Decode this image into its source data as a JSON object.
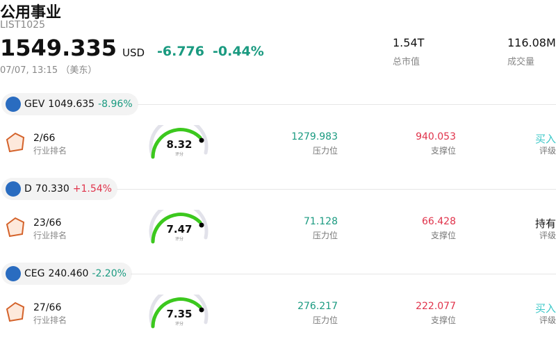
{
  "header": {
    "title": "公用事业",
    "code": "LIST1025",
    "price": "1549.335",
    "currency": "USD",
    "change": "-6.776",
    "change_pct": "-0.44%",
    "time": "07/07, 13:15 （美东）",
    "stats": [
      {
        "value": "1.54T",
        "label": "总市值"
      },
      {
        "value": "116.08M",
        "label": "成交量"
      }
    ]
  },
  "stocks": [
    {
      "ticker": "GEV",
      "price": "1049.635",
      "change_pct": "-8.96%",
      "rank": "2/66",
      "rank_label": "行业排名",
      "score": "8.32",
      "score_label": "评分",
      "resistance": "1279.983",
      "resistance_label": "压力位",
      "support": "940.053",
      "support_label": "支撑位",
      "rating": "买入",
      "rating_label": "评级"
    },
    {
      "ticker": "D",
      "price": "70.330",
      "change_pct": "+1.54%",
      "rank": "23/66",
      "rank_label": "行业排名",
      "score": "7.47",
      "score_label": "评分",
      "resistance": "71.128",
      "resistance_label": "压力位",
      "support": "66.428",
      "support_label": "支撑位",
      "rating": "持有",
      "rating_label": "评级"
    },
    {
      "ticker": "CEG",
      "price": "240.460",
      "change_pct": "-2.20%",
      "rank": "27/66",
      "rank_label": "行业排名",
      "score": "7.35",
      "score_label": "评分",
      "resistance": "276.217",
      "resistance_label": "压力位",
      "support": "222.077",
      "support_label": "支撑位",
      "rating": "买入",
      "rating_label": "评级"
    }
  ]
}
